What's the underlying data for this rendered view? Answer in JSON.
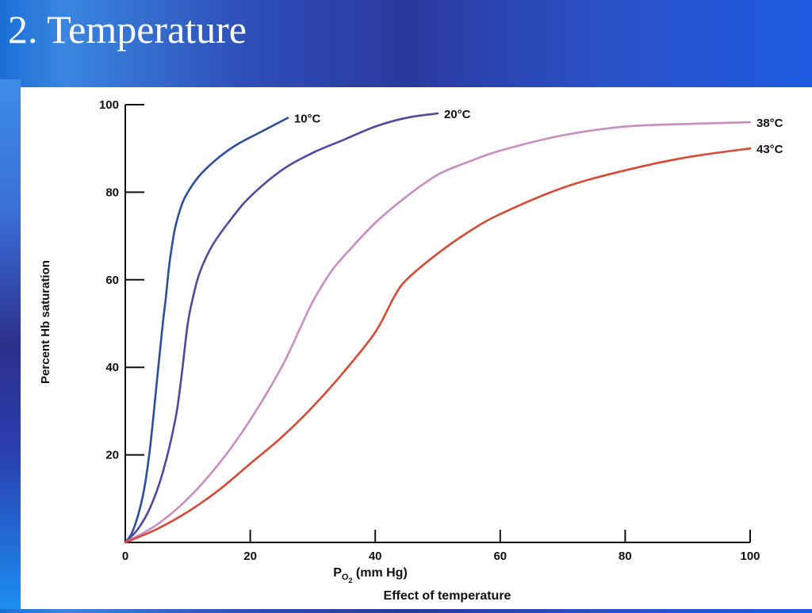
{
  "slide": {
    "title": "2. Temperature"
  },
  "chart_data": {
    "type": "line",
    "title": "",
    "caption": "Effect of temperature",
    "xlabel": "PO2 (mm Hg)",
    "xlabel_main": "P",
    "xlabel_sub": "O",
    "xlabel_sub2": "2",
    "xlabel_rest": " (mm Hg)",
    "ylabel": "Percent Hb saturation",
    "xlim": [
      0,
      100
    ],
    "ylim": [
      0,
      100
    ],
    "x_ticks": [
      0,
      20,
      40,
      60,
      80,
      100
    ],
    "y_ticks": [
      20,
      40,
      60,
      80,
      100
    ],
    "x_tick_labels": [
      "0",
      "20",
      "40",
      "60",
      "80",
      "100"
    ],
    "y_tick_labels": [
      "20",
      "40",
      "60",
      "80",
      "100"
    ],
    "grid": false,
    "legend": "labels at line ends",
    "series": [
      {
        "name": "10°C",
        "color": "#2a4f9c",
        "x": [
          0,
          1,
          2,
          3,
          4,
          5,
          6,
          6.5,
          7,
          7.5,
          8,
          9,
          10,
          12,
          15,
          18,
          22,
          26
        ],
        "y": [
          0,
          2,
          6,
          12,
          22,
          36,
          50,
          56,
          63,
          68,
          72,
          77,
          80,
          84,
          88,
          91,
          94,
          97
        ]
      },
      {
        "name": "20°C",
        "color": "#5148a0",
        "x": [
          0,
          2,
          4,
          6,
          8,
          9,
          10,
          11,
          12,
          14,
          17,
          20,
          25,
          30,
          35,
          40,
          45,
          50
        ],
        "y": [
          0,
          3,
          8,
          16,
          28,
          38,
          50,
          57,
          62,
          68,
          74,
          79,
          85,
          89,
          92,
          95,
          97,
          98
        ]
      },
      {
        "name": "38°C",
        "color": "#c98cc4",
        "x": [
          0,
          5,
          10,
          15,
          20,
          25,
          28,
          30,
          33,
          36,
          40,
          45,
          50,
          55,
          60,
          70,
          80,
          90,
          100
        ],
        "y": [
          0,
          4,
          10,
          18,
          28,
          40,
          49,
          55,
          62,
          67,
          73,
          79,
          84,
          87,
          89.5,
          93,
          95,
          95.6,
          96
        ]
      },
      {
        "name": "43°C",
        "color": "#d84a33",
        "x": [
          0,
          5,
          10,
          15,
          20,
          25,
          30,
          35,
          40,
          43,
          45,
          50,
          55,
          60,
          70,
          80,
          90,
          100
        ],
        "y": [
          0,
          3,
          7,
          12,
          18,
          24,
          31,
          39,
          48,
          56,
          60,
          66,
          71,
          75,
          81,
          85,
          88,
          90
        ]
      }
    ]
  }
}
